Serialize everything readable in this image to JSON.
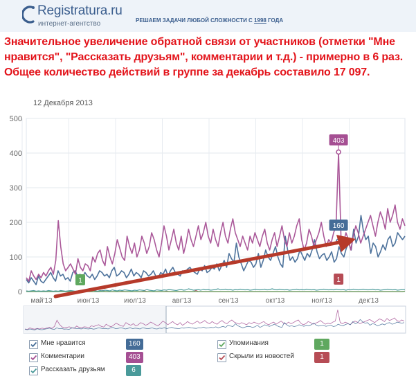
{
  "header": {
    "logo_name": "Registratura.ru",
    "logo_sub": "интернет-агентство",
    "slogan_text": "РЕШАЕМ ЗАДАЧИ ЛЮБОЙ СЛОЖНОСТИ С ",
    "slogan_year": "1998",
    "slogan_end": " ГОДА"
  },
  "headline": "Значительное увеличение обратной связи от участников (отметки \"Мне нравится\", \"Рассказать друзьям\", комментарии и т.д.) - примерно в 6 раз. Общее количество действий в группе за декабрь составило 17 097.",
  "colors": {
    "likes": "#446c97",
    "comments": "#a54f93",
    "shares": "#4a9a9a",
    "mentions": "#5fa85f",
    "hidden": "#b64c55",
    "arrow": "#b63a2a"
  },
  "chart_data": {
    "type": "line",
    "date": "12 Декабря 2013",
    "ylim": [
      0,
      500
    ],
    "y_ticks": [
      "0",
      "100",
      "200",
      "300",
      "400",
      "500"
    ],
    "x_ticks": [
      "май'13",
      "июн'13",
      "июл'13",
      "авг'13",
      "сен'13",
      "окт'13",
      "ноя'13",
      "дек'13"
    ],
    "series": [
      {
        "name": "Мне нравится",
        "key": "likes",
        "total": "160",
        "values": [
          35,
          25,
          40,
          30,
          20,
          45,
          30,
          25,
          35,
          45,
          55,
          40,
          30,
          60,
          45,
          50,
          35,
          40,
          30,
          55,
          60,
          45,
          50,
          40,
          55,
          45,
          40,
          50,
          35,
          45,
          60,
          55,
          45,
          50,
          40,
          60,
          70,
          45,
          50,
          60,
          55,
          40,
          50,
          65,
          45,
          55,
          50,
          40,
          60,
          55,
          45,
          50,
          60,
          45,
          40,
          55,
          50,
          65,
          45,
          60,
          70,
          55,
          50,
          45,
          60,
          55,
          65,
          70,
          60,
          55,
          50,
          65,
          60,
          75,
          55,
          60,
          70,
          65,
          80,
          60,
          75,
          90,
          70,
          110,
          95,
          85,
          140,
          100,
          80,
          60,
          75,
          90,
          85,
          70,
          80,
          110,
          70,
          90,
          120,
          100,
          90,
          110,
          130,
          100,
          80,
          70,
          160,
          120,
          90,
          100,
          85,
          95,
          120,
          105,
          90,
          110,
          100,
          120,
          150,
          115,
          95,
          105,
          110,
          90,
          100,
          115,
          85,
          95,
          130,
          110,
          100,
          125,
          140,
          120,
          180,
          140,
          160,
          220,
          175,
          150,
          160,
          110,
          140,
          130,
          100,
          115,
          135,
          120,
          150,
          160,
          130,
          140,
          170,
          160,
          150,
          160
        ]
      },
      {
        "name": "Комментарии",
        "key": "comments",
        "total": "403",
        "values": [
          40,
          30,
          60,
          45,
          35,
          50,
          40,
          55,
          45,
          60,
          70,
          50,
          90,
          205,
          130,
          80,
          60,
          70,
          80,
          65,
          50,
          95,
          70,
          60,
          80,
          75,
          60,
          100,
          85,
          110,
          120,
          90,
          75,
          130,
          100,
          80,
          110,
          150,
          125,
          100,
          90,
          160,
          130,
          110,
          140,
          100,
          120,
          160,
          140,
          110,
          130,
          170,
          150,
          120,
          100,
          140,
          190,
          160,
          120,
          150,
          180,
          140,
          120,
          160,
          110,
          140,
          180,
          150,
          130,
          160,
          190,
          150,
          170,
          200,
          160,
          140,
          180,
          150,
          130,
          170,
          200,
          160,
          140,
          180,
          210,
          170,
          150,
          130,
          160,
          140,
          120,
          160,
          140,
          170,
          150,
          130,
          160,
          180,
          140,
          120,
          150,
          170,
          130,
          160,
          190,
          150,
          130,
          170,
          140,
          160,
          190,
          210,
          150,
          120,
          140,
          180,
          160,
          130,
          150,
          170,
          200,
          160,
          130,
          150,
          140,
          170,
          190,
          403,
          160,
          140,
          170,
          150,
          120,
          160,
          190,
          170,
          140,
          160,
          180,
          200,
          220,
          190,
          160,
          200,
          230,
          210,
          180,
          240,
          200,
          220,
          250,
          200,
          180,
          210,
          190
        ]
      },
      {
        "name": "Рассказать друзьям",
        "key": "shares",
        "total": "6",
        "values": [
          2,
          1,
          2,
          3,
          1,
          2,
          1,
          2,
          1,
          3,
          2,
          1,
          2,
          1,
          3,
          2,
          1,
          2,
          3,
          2,
          1,
          2,
          3,
          2,
          1,
          2,
          3,
          4,
          2,
          1,
          3,
          2,
          4,
          3,
          2,
          5,
          3,
          2,
          4,
          3,
          5,
          4,
          3,
          2,
          4,
          3,
          5,
          4,
          3,
          6,
          4,
          3,
          2,
          5,
          4,
          3,
          5,
          4,
          6,
          5,
          4,
          3,
          5,
          6,
          4,
          5,
          8,
          6,
          4,
          5,
          6,
          4,
          7,
          5,
          6,
          4,
          5,
          6,
          8,
          5,
          6,
          7,
          5,
          6,
          4,
          6,
          5,
          7,
          6,
          5,
          6,
          4,
          5,
          7,
          6,
          5,
          6,
          7,
          5,
          6,
          8,
          6,
          5,
          7,
          6,
          5,
          6,
          4,
          5,
          6,
          7,
          5,
          6,
          5,
          7,
          6,
          5,
          6,
          4,
          5,
          6,
          7,
          6,
          5,
          6,
          5,
          7,
          6,
          5,
          6,
          4,
          6,
          5,
          7,
          6,
          5,
          6,
          7,
          6,
          5,
          6,
          7,
          5,
          6,
          4,
          5,
          6,
          7,
          6,
          5,
          6,
          4,
          5,
          6,
          6
        ]
      },
      {
        "name": "Упоминания",
        "key": "mentions",
        "total": "1",
        "values": [
          0,
          0,
          0,
          0,
          0,
          0,
          0,
          0,
          0,
          0,
          0,
          0,
          0,
          0,
          0,
          0,
          0,
          0,
          0,
          0,
          0,
          0,
          0,
          0,
          0,
          0,
          0,
          0,
          0,
          0,
          0,
          0,
          0,
          0,
          0,
          0,
          0,
          0,
          0,
          0,
          0,
          0,
          0,
          0,
          0,
          0,
          0,
          0,
          0,
          0,
          0,
          0,
          0,
          0,
          0,
          0,
          0,
          0,
          0,
          0,
          0,
          0,
          0,
          0,
          0,
          0,
          0,
          0,
          0,
          0,
          0,
          0,
          0,
          0,
          0,
          0,
          0,
          0,
          0,
          0,
          0,
          0,
          0,
          0,
          0,
          0,
          0,
          0,
          0,
          0,
          0,
          0,
          0,
          0,
          0,
          0,
          0,
          0,
          0,
          0,
          0,
          0,
          0,
          0,
          0,
          0,
          0,
          0,
          0,
          0,
          0,
          0,
          0,
          0,
          0,
          0,
          0,
          0,
          0,
          0,
          0,
          0,
          0,
          0,
          0,
          0,
          0,
          0,
          0,
          0,
          0,
          0,
          0,
          0,
          0,
          0,
          0,
          0,
          0,
          0,
          0,
          0,
          0,
          0,
          0,
          0,
          0,
          0,
          0,
          0,
          0,
          0,
          0,
          0,
          1
        ]
      },
      {
        "name": "Скрыли из новостей",
        "key": "hidden",
        "total": "1",
        "values": [
          0,
          0,
          0,
          0,
          0,
          1,
          0,
          0,
          0,
          0,
          0,
          0,
          0,
          0,
          2,
          0,
          0,
          0,
          0,
          0,
          1,
          0,
          0,
          0,
          0,
          0,
          0,
          0,
          0,
          0,
          0,
          3,
          0,
          0,
          0,
          0,
          0,
          0,
          0,
          1,
          0,
          0,
          0,
          0,
          0,
          0,
          0,
          0,
          2,
          0,
          0,
          0,
          0,
          0,
          0,
          0,
          0,
          1,
          0,
          0,
          0,
          0,
          0,
          0,
          0,
          0,
          0,
          0,
          0,
          3,
          0,
          0,
          0,
          0,
          0,
          0,
          0,
          0,
          0,
          0,
          0,
          0,
          0,
          0,
          0,
          0,
          0,
          0,
          0,
          0,
          0,
          0,
          0,
          0,
          0,
          0,
          0,
          0,
          0,
          0,
          0,
          0,
          0,
          0,
          0,
          0,
          0,
          0,
          0,
          0,
          0,
          0,
          0,
          0,
          0,
          0,
          0,
          0,
          0,
          0,
          0,
          0,
          0,
          0,
          0,
          0,
          0,
          0,
          0,
          0,
          0,
          0,
          0,
          0,
          0,
          0,
          0,
          0,
          0,
          0,
          0,
          0,
          0,
          0,
          0,
          0,
          0,
          0,
          0,
          0,
          0,
          0,
          0,
          0,
          1
        ]
      }
    ],
    "callouts": [
      {
        "series": "comments",
        "label": "403"
      },
      {
        "series": "likes",
        "label": "160"
      },
      {
        "series": "hidden",
        "label": "1"
      },
      {
        "series": "mentions",
        "label": "1"
      }
    ],
    "legend": [
      {
        "series": "likes",
        "checked": true
      },
      {
        "series": "comments",
        "checked": true
      },
      {
        "series": "shares",
        "checked": true
      },
      {
        "series": "mentions",
        "checked": true
      },
      {
        "series": "hidden",
        "checked": true
      }
    ]
  }
}
